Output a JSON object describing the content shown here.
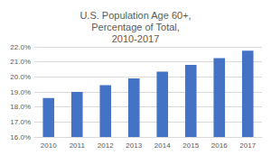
{
  "chart_data": {
    "type": "bar",
    "title": "U.S. Population Age 60+,\nPercentage of Total,\n2010-2017",
    "categories": [
      "2010",
      "2011",
      "2012",
      "2013",
      "2014",
      "2015",
      "2016",
      "2017"
    ],
    "values": [
      18.6,
      19.0,
      19.45,
      19.9,
      20.35,
      20.8,
      21.25,
      21.75
    ],
    "color": "#4472c4",
    "ylim": [
      16,
      22
    ],
    "yticks": [
      {
        "value": 16,
        "label": "16.0%"
      },
      {
        "value": 17,
        "label": "17.0%"
      },
      {
        "value": 18,
        "label": "18.0%"
      },
      {
        "value": 19,
        "label": "19.0%"
      },
      {
        "value": 20,
        "label": "20.0%"
      },
      {
        "value": 21,
        "label": "21.0%"
      },
      {
        "value": 22,
        "label": "22.0%"
      }
    ],
    "grid": true
  }
}
